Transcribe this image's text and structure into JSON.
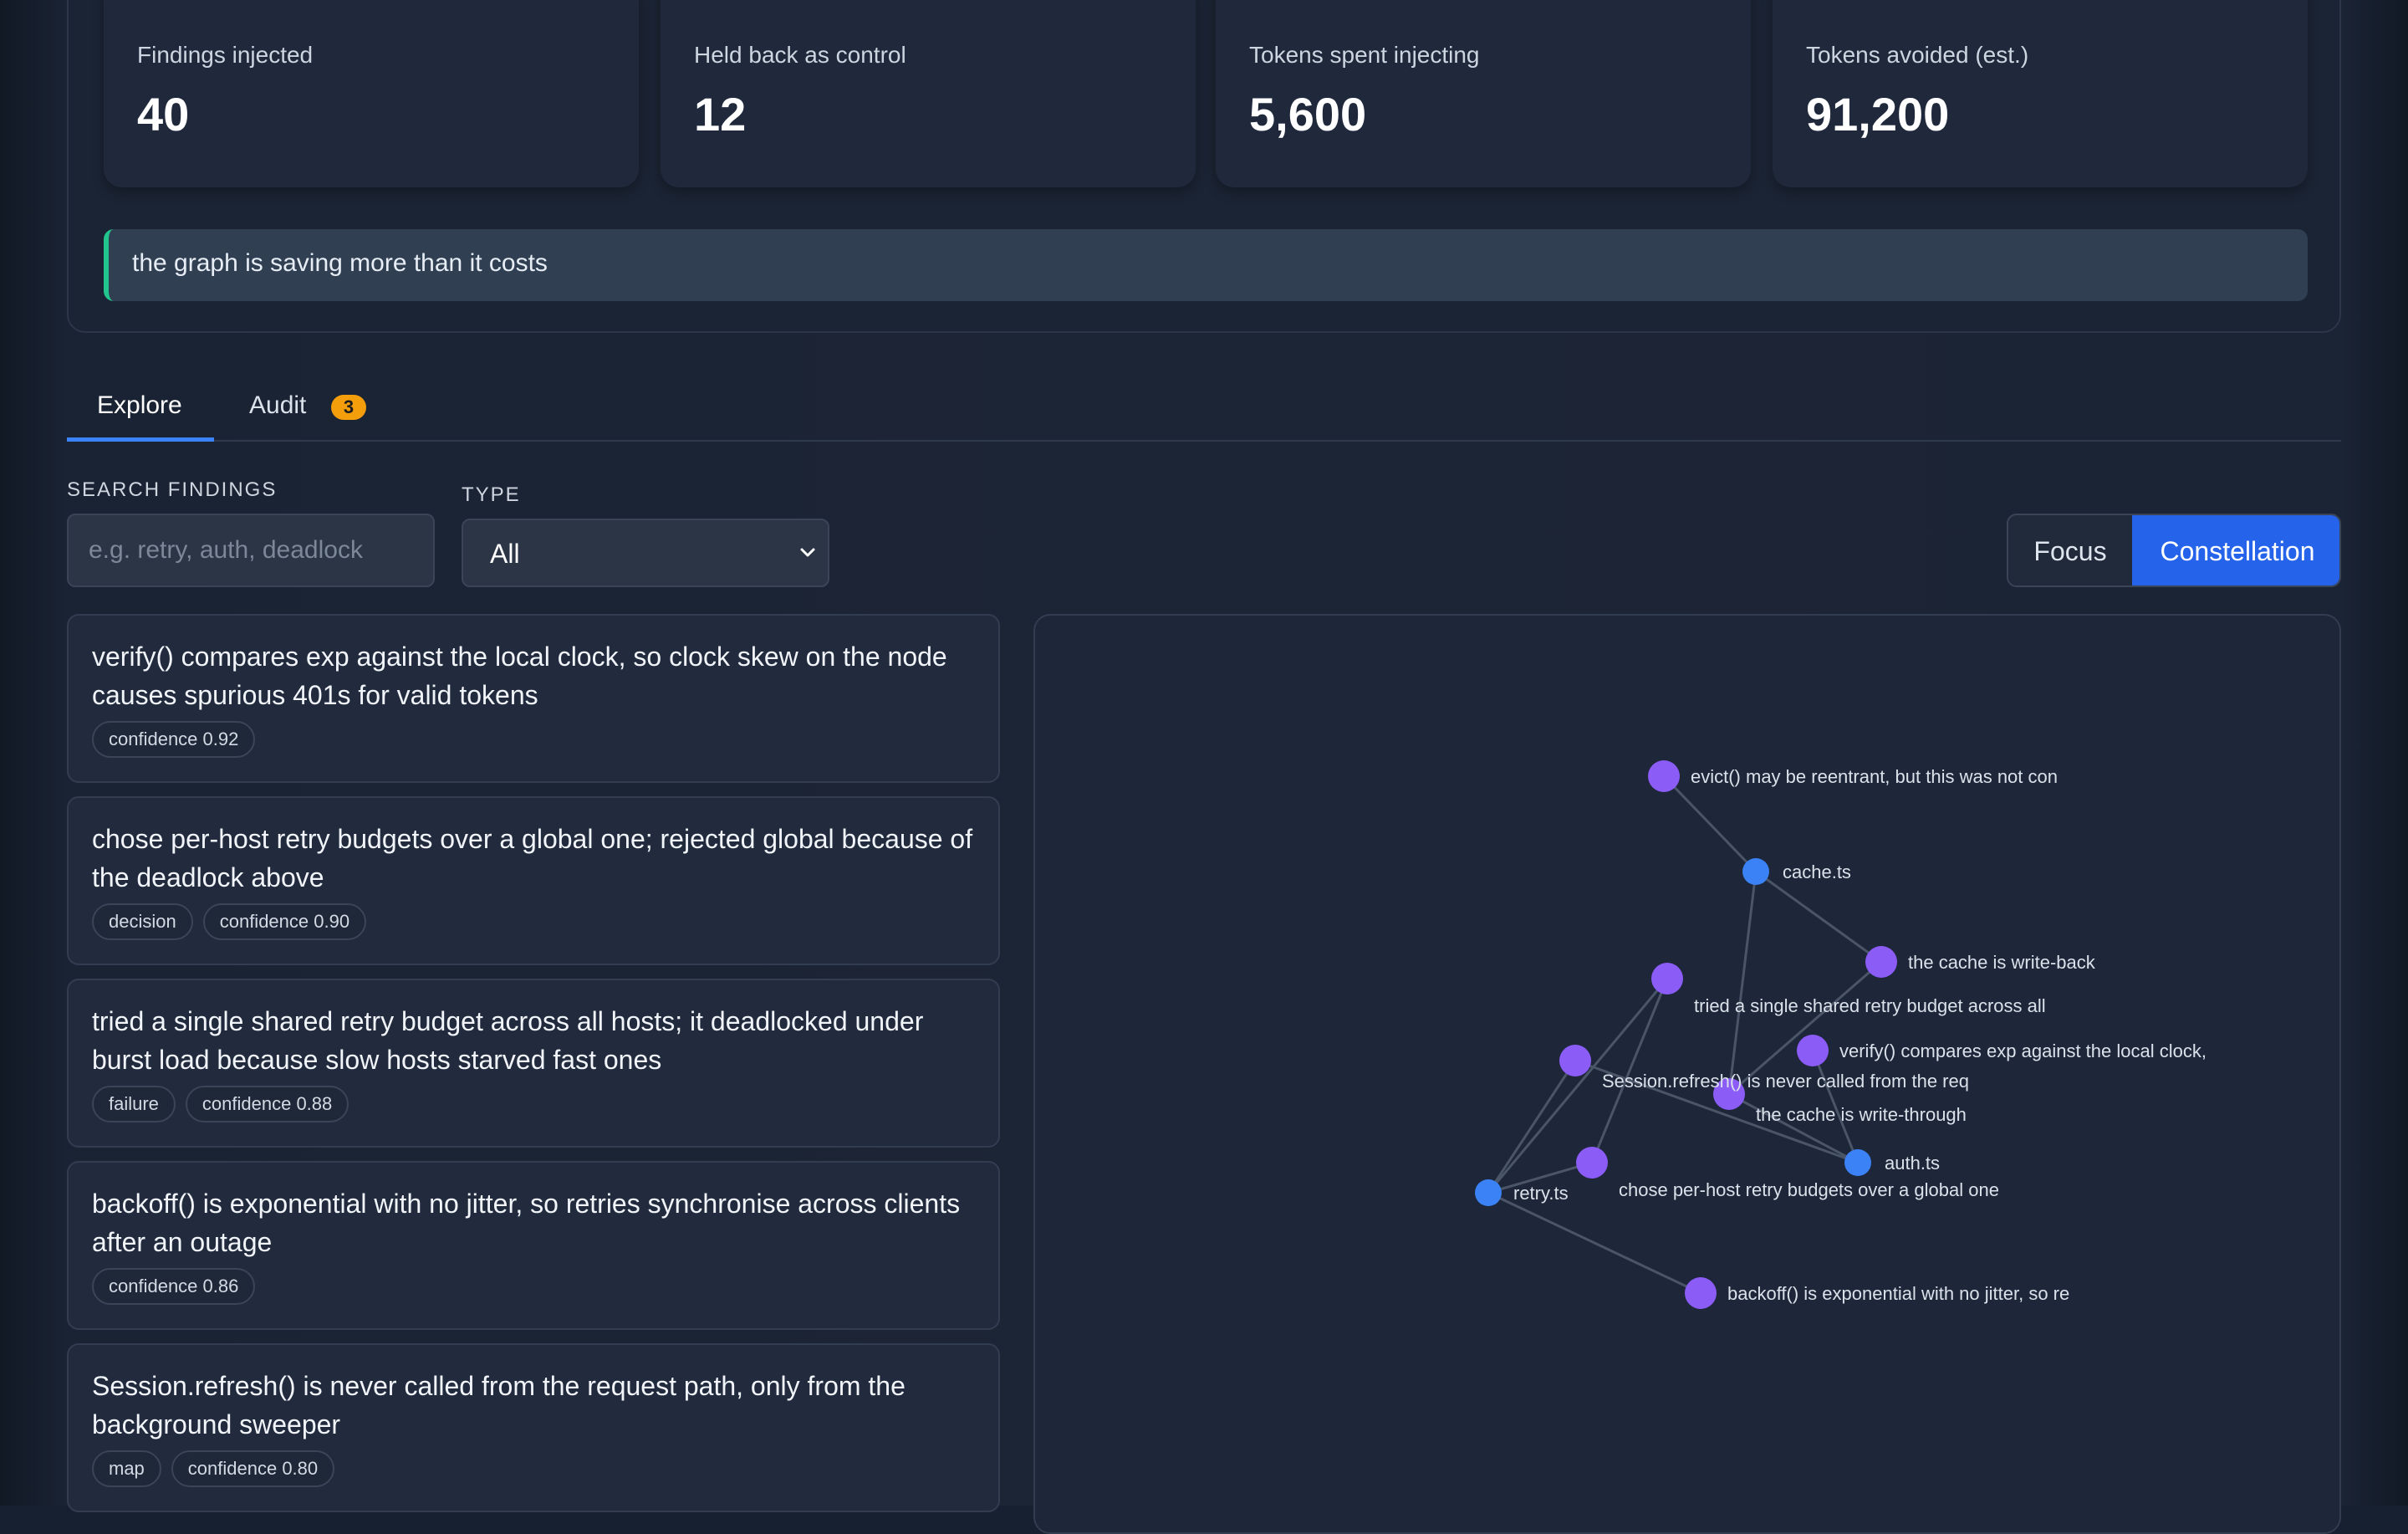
{
  "stats": [
    {
      "label": "Findings injected",
      "value": "40"
    },
    {
      "label": "Held back as control",
      "value": "12"
    },
    {
      "label": "Tokens spent injecting",
      "value": "5,600"
    },
    {
      "label": "Tokens avoided (est.)",
      "value": "91,200"
    }
  ],
  "savings_banner": "the graph is saving more than it costs",
  "tabs": {
    "explore": "Explore",
    "audit": "Audit",
    "audit_badge": "3"
  },
  "filters": {
    "search_label": "SEARCH FINDINGS",
    "search_placeholder": "e.g. retry, auth, deadlock",
    "search_value": "",
    "type_label": "TYPE",
    "type_value": "All"
  },
  "view_toggle": {
    "focus": "Focus",
    "constellation": "Constellation",
    "active": "Constellation"
  },
  "findings": [
    {
      "text": "verify() compares exp against the local clock, so clock skew on the node causes spurious 401s for valid tokens",
      "chips": [
        "confidence 0.92"
      ]
    },
    {
      "text": "chose per-host retry budgets over a global one; rejected global because of the deadlock above",
      "chips": [
        "decision",
        "confidence 0.90"
      ]
    },
    {
      "text": "tried a single shared retry budget across all hosts; it deadlocked under burst load because slow hosts starved fast ones",
      "chips": [
        "failure",
        "confidence 0.88"
      ]
    },
    {
      "text": "backoff() is exponential with no jitter, so retries synchronise across clients after an outage",
      "chips": [
        "confidence 0.86"
      ]
    },
    {
      "text": "Session.refresh() is never called from the request path, only from the background sweeper",
      "chips": [
        "map",
        "confidence 0.80"
      ]
    }
  ],
  "graph": {
    "colors": {
      "file": "#3b82f6",
      "finding": "#8b5cf6",
      "edge": "#4a5568"
    },
    "nodes": [
      {
        "id": "evict",
        "kind": "finding",
        "label": "evict() may be reentrant, but this was not con"
      },
      {
        "id": "cache",
        "kind": "file",
        "label": "cache.ts"
      },
      {
        "id": "writeback",
        "kind": "finding",
        "label": "the cache is write-back"
      },
      {
        "id": "shared",
        "kind": "finding",
        "label": "tried a single shared retry budget across all"
      },
      {
        "id": "verify",
        "kind": "finding",
        "label": "verify() compares exp against the local clock,"
      },
      {
        "id": "session",
        "kind": "finding",
        "label": "Session.refresh() is never called from the req"
      },
      {
        "id": "writethrough",
        "kind": "finding",
        "label": "the cache is write-through"
      },
      {
        "id": "auth",
        "kind": "file",
        "label": "auth.ts"
      },
      {
        "id": "perhost",
        "kind": "finding",
        "label": "chose per-host retry budgets over a global one"
      },
      {
        "id": "retry",
        "kind": "file",
        "label": "retry.ts"
      },
      {
        "id": "backoff",
        "kind": "finding",
        "label": "backoff() is exponential with no jitter, so re"
      }
    ],
    "edges": [
      [
        "evict",
        "cache"
      ],
      [
        "cache",
        "writeback"
      ],
      [
        "cache",
        "writethrough"
      ],
      [
        "writeback",
        "writethrough"
      ],
      [
        "shared",
        "retry"
      ],
      [
        "shared",
        "perhost"
      ],
      [
        "session",
        "auth"
      ],
      [
        "session",
        "retry"
      ],
      [
        "verify",
        "auth"
      ],
      [
        "writethrough",
        "auth"
      ],
      [
        "perhost",
        "retry"
      ],
      [
        "retry",
        "backoff"
      ]
    ]
  }
}
